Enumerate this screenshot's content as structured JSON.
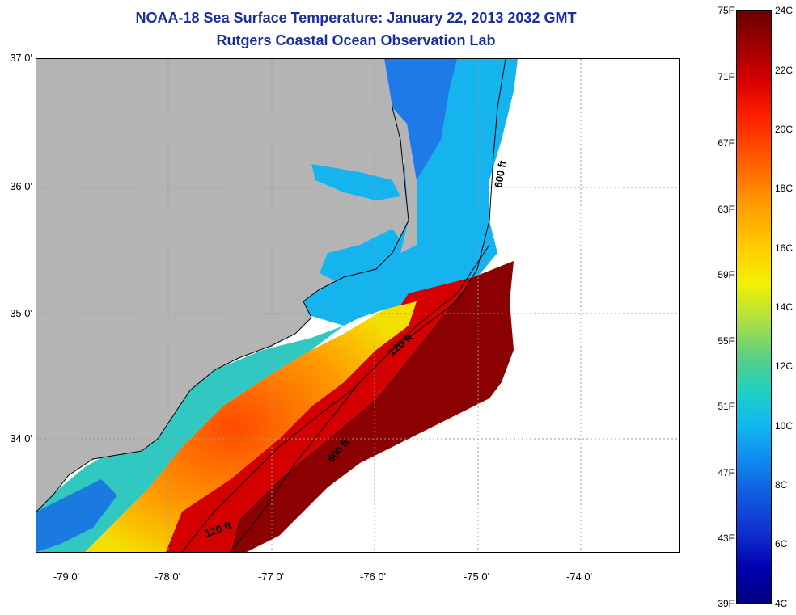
{
  "title_line1": "NOAA-18 Sea Surface Temperature:  January 22, 2013 2032 GMT",
  "title_line2": "Rutgers Coastal Ocean Observation Lab",
  "lat_labels": [
    "37 0'",
    "36 0'",
    "35 0'",
    "34 0'"
  ],
  "lon_labels": [
    "-79 0'",
    "-78 0'",
    "-77 0'",
    "-76 0'",
    "-75 0'",
    "-74 0'"
  ],
  "contour_labels": {
    "north_600": "600 ft",
    "north_120": "120 ft",
    "south_600": "600 ft",
    "south_120": "120 ft"
  },
  "colorbar_f": [
    "75F",
    "71F",
    "67F",
    "63F",
    "59F",
    "55F",
    "51F",
    "47F",
    "43F",
    "39F"
  ],
  "colorbar_c": [
    "24C",
    "22C",
    "20C",
    "18C",
    "16C",
    "14C",
    "12C",
    "10C",
    "8C",
    "6C",
    "4C"
  ],
  "colors": {
    "land": "#b4b4b4",
    "title": "#1a2f9e",
    "cold": "#10a8f0",
    "warm": "#d00000",
    "hot": "#8b0000"
  }
}
